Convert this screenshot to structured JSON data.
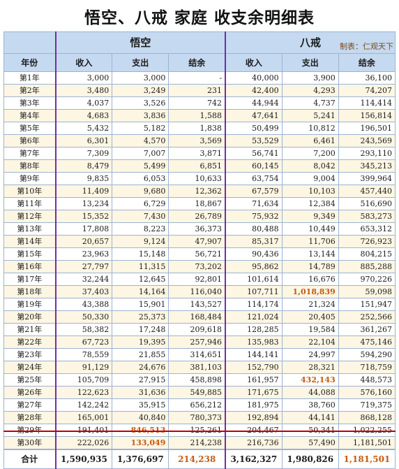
{
  "title": "悟空、八戒 家庭 收支余明细表",
  "credit": "制表：仁观天下",
  "groups": {
    "wukong": "悟空",
    "bajie": "八戒"
  },
  "headers": {
    "year": "年份",
    "income": "收入",
    "expense": "支出",
    "balance": "结余"
  },
  "rows": [
    [
      "第1年",
      "3,000",
      "3,000",
      "-",
      "40,000",
      "3,900",
      "36,100"
    ],
    [
      "第2年",
      "3,480",
      "3,249",
      "231",
      "42,400",
      "4,293",
      "74,207"
    ],
    [
      "第3年",
      "4,037",
      "3,526",
      "742",
      "44,944",
      "4,737",
      "114,414"
    ],
    [
      "第4年",
      "4,683",
      "3,836",
      "1,588",
      "47,641",
      "5,241",
      "156,814"
    ],
    [
      "第5年",
      "5,432",
      "5,182",
      "1,838",
      "50,499",
      "10,812",
      "196,501"
    ],
    [
      "第6年",
      "6,301",
      "4,570",
      "3,569",
      "53,529",
      "6,461",
      "243,569"
    ],
    [
      "第7年",
      "7,309",
      "7,007",
      "3,871",
      "56,741",
      "7,200",
      "293,110"
    ],
    [
      "第8年",
      "8,479",
      "5,499",
      "6,851",
      "60,145",
      "8,042",
      "345,213"
    ],
    [
      "第9年",
      "9,835",
      "6,053",
      "10,633",
      "63,754",
      "9,004",
      "399,964"
    ],
    [
      "第10年",
      "11,409",
      "9,680",
      "12,362",
      "67,579",
      "10,103",
      "457,440"
    ],
    [
      "第11年",
      "13,234",
      "6,729",
      "18,867",
      "71,634",
      "12,384",
      "516,690"
    ],
    [
      "第12年",
      "15,352",
      "7,430",
      "26,789",
      "75,932",
      "9,349",
      "583,273"
    ],
    [
      "第13年",
      "17,808",
      "8,223",
      "36,373",
      "80,488",
      "10,449",
      "653,312"
    ],
    [
      "第14年",
      "20,657",
      "9,124",
      "47,907",
      "85,317",
      "11,706",
      "726,923"
    ],
    [
      "第15年",
      "23,963",
      "15,148",
      "56,721",
      "90,436",
      "13,144",
      "804,215"
    ],
    [
      "第16年",
      "27,797",
      "11,315",
      "73,202",
      "95,862",
      "14,789",
      "885,288"
    ],
    [
      "第17年",
      "32,244",
      "12,645",
      "92,801",
      "101,614",
      "16,676",
      "970,226"
    ],
    [
      "第18年",
      "37,403",
      "14,164",
      "116,040",
      "107,711",
      "1,018,839",
      "59,098"
    ],
    [
      "第19年",
      "43,388",
      "15,901",
      "143,527",
      "114,174",
      "21,324",
      "151,947"
    ],
    [
      "第20年",
      "50,330",
      "25,373",
      "168,484",
      "121,024",
      "20,405",
      "252,566"
    ],
    [
      "第21年",
      "58,382",
      "17,248",
      "209,618",
      "128,285",
      "19,584",
      "361,267"
    ],
    [
      "第22年",
      "67,723",
      "19,395",
      "257,946",
      "135,983",
      "22,104",
      "475,146"
    ],
    [
      "第23年",
      "78,559",
      "21,855",
      "314,651",
      "144,141",
      "24,997",
      "594,290"
    ],
    [
      "第24年",
      "91,129",
      "24,676",
      "381,103",
      "152,790",
      "28,321",
      "718,759"
    ],
    [
      "第25年",
      "105,709",
      "27,915",
      "458,898",
      "161,957",
      "432,143",
      "448,573"
    ],
    [
      "第26年",
      "122,623",
      "31,636",
      "549,885",
      "171,675",
      "44,088",
      "576,160"
    ],
    [
      "第27年",
      "142,242",
      "35,915",
      "656,212",
      "181,975",
      "38,760",
      "719,375"
    ],
    [
      "第28年",
      "165,001",
      "40,840",
      "780,373",
      "192,894",
      "44,141",
      "868,128"
    ],
    [
      "第29年",
      "191,401",
      "846,513",
      "125,261",
      "204,467",
      "50,341",
      "1,022,255"
    ],
    [
      "第30年",
      "222,026",
      "133,049",
      "214,238",
      "216,736",
      "57,490",
      "1,181,501"
    ]
  ],
  "highlights": [
    [
      17,
      5
    ],
    [
      24,
      5
    ],
    [
      28,
      2
    ],
    [
      29,
      2
    ]
  ],
  "total": [
    "合计",
    "1,590,935",
    "1,376,697",
    "214,238",
    "3,162,327",
    "1,980,826",
    "1,181,501"
  ],
  "total_highlights": [
    3,
    6
  ],
  "colors": {
    "header_bg": "#c5d9f1",
    "alt_row_bg": "#fdf6e3",
    "highlight": "#c55a11",
    "separator": "#7030a0"
  }
}
